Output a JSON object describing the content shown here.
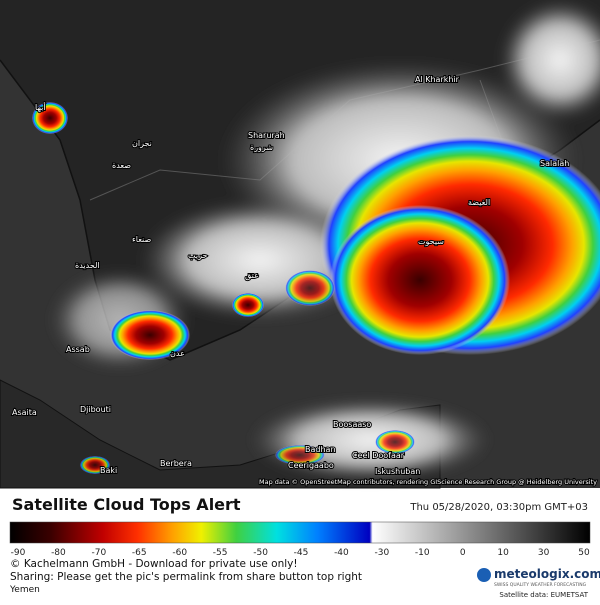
{
  "map": {
    "labels": [
      "Al Kharkhir",
      "Sharurah",
      "شرورة",
      "نجران",
      "صعدة",
      "أبها",
      "صنعاء",
      "الحديدة",
      "حريب",
      "عتق",
      "عدن",
      "سيحوت",
      "الغيضة",
      "Salalah",
      "Assab",
      "Djibouti",
      "Asaita",
      "Boosaaso",
      "Badhan",
      "Ceerigaabo",
      "Ceel Doofaar",
      "Iskushuban",
      "Berbera",
      "Baki"
    ],
    "attribution": "Map data © OpenStreetMap contributors, rendering GIScience Research Group @ Heidelberg University"
  },
  "footer": {
    "title": "Satellite Cloud Tops Alert",
    "date": "Thu 05/28/2020, 03:30pm GMT+03",
    "scale_labels": [
      "-90",
      "-80",
      "-70",
      "-65",
      "-60",
      "-55",
      "-50",
      "-45",
      "-40",
      "-30",
      "-10",
      "0",
      "10",
      "30",
      "50"
    ],
    "copyright": "© Kachelmann GmbH - Download for private use only!",
    "sharing": "Sharing: Please get the pic's permalink from share button top right",
    "region": "Yemen",
    "logo": "meteologix.com",
    "tagline": "SWISS QUALITY WEATHER FORECASTING",
    "source": "Satellite data: EUMETSAT"
  }
}
